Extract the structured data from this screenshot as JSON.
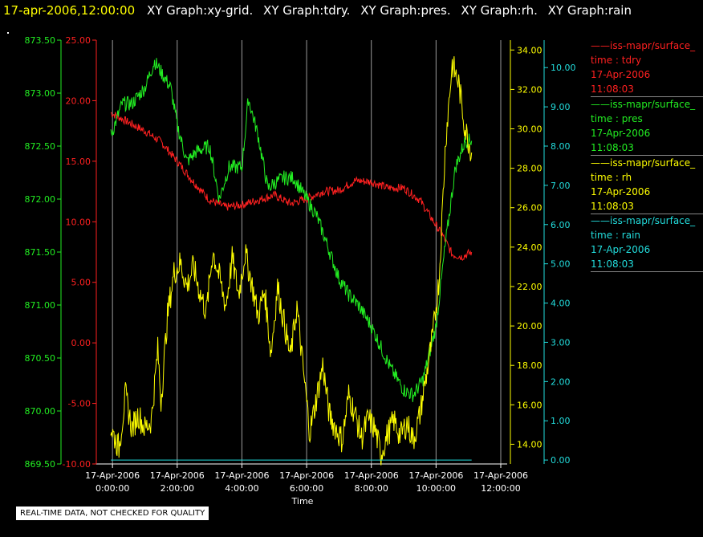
{
  "header": {
    "time_label": "17-apr-2006,12:00:00",
    "graphs": [
      "XY Graph:xy-grid.",
      "XY Graph:tdry.",
      "XY Graph:pres.",
      "XY Graph:rh.",
      "XY Graph:rain"
    ]
  },
  "footer_note": "REAL-TIME DATA, NOT CHECKED FOR QUALITY",
  "legend": [
    {
      "name": "iss-mapr/surface_",
      "vars": "time : tdry",
      "date": "17-Apr-2006",
      "time": "11:08:03",
      "color": "#ff2020"
    },
    {
      "name": "iss-mapr/surface_",
      "vars": "time : pres",
      "date": "17-Apr-2006",
      "time": "11:08:03",
      "color": "#22ee22"
    },
    {
      "name": "iss-mapr/surface_",
      "vars": "time : rh",
      "date": "17-Apr-2006",
      "time": "11:08:03",
      "color": "#ffff00"
    },
    {
      "name": "iss-mapr/surface_",
      "vars": "time : rain",
      "date": "17-Apr-2006",
      "time": "11:08:03",
      "color": "#22dddd"
    }
  ],
  "chart_data": {
    "type": "line",
    "xlabel": "Time",
    "xlim": [
      -0.5,
      12
    ],
    "x_ticks": [
      {
        "value": 0,
        "date": "17-Apr-2006",
        "time": "0:00:00"
      },
      {
        "value": 2,
        "date": "17-Apr-2006",
        "time": "2:00:00"
      },
      {
        "value": 4,
        "date": "17-Apr-2006",
        "time": "4:00:00"
      },
      {
        "value": 6,
        "date": "17-Apr-2006",
        "time": "6:00:00"
      },
      {
        "value": 8,
        "date": "17-Apr-2006",
        "time": "8:00:00"
      },
      {
        "value": 10,
        "date": "17-Apr-2006",
        "time": "10:00:00"
      },
      {
        "value": 12,
        "date": "17-Apr-2006",
        "time": "12:00:00"
      }
    ],
    "x_grid": [
      0,
      2,
      4,
      6,
      8,
      10,
      12
    ],
    "axes": {
      "pres": {
        "side": "left",
        "color": "#22ee22",
        "min": 869.5,
        "max": 873.5,
        "ticks": [
          "869.50",
          "870.00",
          "870.50",
          "871.00",
          "871.50",
          "872.00",
          "872.50",
          "873.00",
          "873.50"
        ]
      },
      "tdry": {
        "side": "left",
        "color": "#ff2020",
        "min": -10,
        "max": 25,
        "ticks": [
          "-10.00",
          "-5.00",
          "0.00",
          "5.00",
          "10.00",
          "15.00",
          "20.00",
          "25.00"
        ]
      },
      "rh": {
        "side": "right",
        "color": "#ffff00",
        "min": 13,
        "max": 34.5,
        "ticks": [
          "14.00",
          "16.00",
          "18.00",
          "20.00",
          "22.00",
          "24.00",
          "26.00",
          "28.00",
          "30.00",
          "32.00",
          "34.00"
        ]
      },
      "rain": {
        "side": "right",
        "color": "#22dddd",
        "min": -0.1,
        "max": 10.7,
        "ticks": [
          "0.00",
          "1.00",
          "2.00",
          "3.00",
          "4.00",
          "5.00",
          "6.00",
          "7.00",
          "8.00",
          "9.00",
          "10.00"
        ]
      }
    },
    "series": [
      {
        "axis": "tdry",
        "color": "#ff2020",
        "x": [
          -0.05,
          0.5,
          1,
          1.5,
          2,
          2.5,
          3,
          3.5,
          4,
          4.5,
          5,
          5.5,
          6,
          6.5,
          7,
          7.5,
          8,
          8.5,
          9,
          9.5,
          10,
          10.2,
          10.5,
          10.8,
          11.1
        ],
        "y": [
          19,
          18.2,
          17.5,
          16.6,
          15,
          13.3,
          11.8,
          11.2,
          11.4,
          11.8,
          12.2,
          11.5,
          11.9,
          12.5,
          12.6,
          13.4,
          13.3,
          12.8,
          12.8,
          11.8,
          9.7,
          8.9,
          7.3,
          7.1,
          7.5
        ]
      },
      {
        "axis": "pres",
        "color": "#22ee22",
        "x": [
          -0.05,
          0.3,
          0.6,
          1,
          1.3,
          1.5,
          1.8,
          2,
          2.3,
          2.6,
          3,
          3.3,
          3.6,
          4,
          4.2,
          4.5,
          4.8,
          5,
          5.3,
          5.6,
          6,
          6.3,
          6.6,
          7,
          7.3,
          7.6,
          8,
          8.3,
          8.6,
          9,
          9.3,
          9.6,
          10,
          10.3,
          10.6,
          10.9,
          11.1
        ],
        "y": [
          872.6,
          872.9,
          872.9,
          873.05,
          873.3,
          873.2,
          873.05,
          872.7,
          872.35,
          872.45,
          872.5,
          872.0,
          872.3,
          872.3,
          872.95,
          872.6,
          872.1,
          872.15,
          872.2,
          872.2,
          872.0,
          871.85,
          871.6,
          871.25,
          871.1,
          871.0,
          870.8,
          870.6,
          870.4,
          870.2,
          870.15,
          870.3,
          870.8,
          871.6,
          872.3,
          872.55,
          872.55
        ]
      },
      {
        "axis": "rh",
        "color": "#ffff00",
        "x": [
          -0.05,
          0.2,
          0.4,
          0.6,
          0.8,
          1,
          1.2,
          1.4,
          1.5,
          1.7,
          1.9,
          2.1,
          2.3,
          2.5,
          2.7,
          2.9,
          3.1,
          3.3,
          3.5,
          3.7,
          3.9,
          4.1,
          4.3,
          4.5,
          4.7,
          4.9,
          5.1,
          5.3,
          5.5,
          5.7,
          5.9,
          6.1,
          6.3,
          6.5,
          6.7,
          6.9,
          7.1,
          7.3,
          7.5,
          7.7,
          7.9,
          8.1,
          8.3,
          8.5,
          8.7,
          8.9,
          9.1,
          9.3,
          9.5,
          9.7,
          9.9,
          10.1,
          10.3,
          10.5,
          10.7,
          10.9,
          11.1
        ],
        "y": [
          14.8,
          13.8,
          16.5,
          14.8,
          15.5,
          14.8,
          15.2,
          18.8,
          16.2,
          20.5,
          22.7,
          23.2,
          22,
          23,
          21.7,
          20.7,
          23.8,
          22.5,
          21,
          23.4,
          21.6,
          23.7,
          22.2,
          20.5,
          21.8,
          18.6,
          22,
          20.2,
          18.4,
          21,
          17.7,
          14.6,
          16.3,
          18,
          15.5,
          14.8,
          14.2,
          16.5,
          15.5,
          14.3,
          15.3,
          14.8,
          13.5,
          14.5,
          15.2,
          14.4,
          15.1,
          14.2,
          15.5,
          17.5,
          19.5,
          22.5,
          29.5,
          33.3,
          32.3,
          30,
          28.8
        ]
      },
      {
        "axis": "rain",
        "color": "#22dddd",
        "x": [
          -0.05,
          11.1
        ],
        "y": [
          0,
          0
        ]
      }
    ]
  }
}
